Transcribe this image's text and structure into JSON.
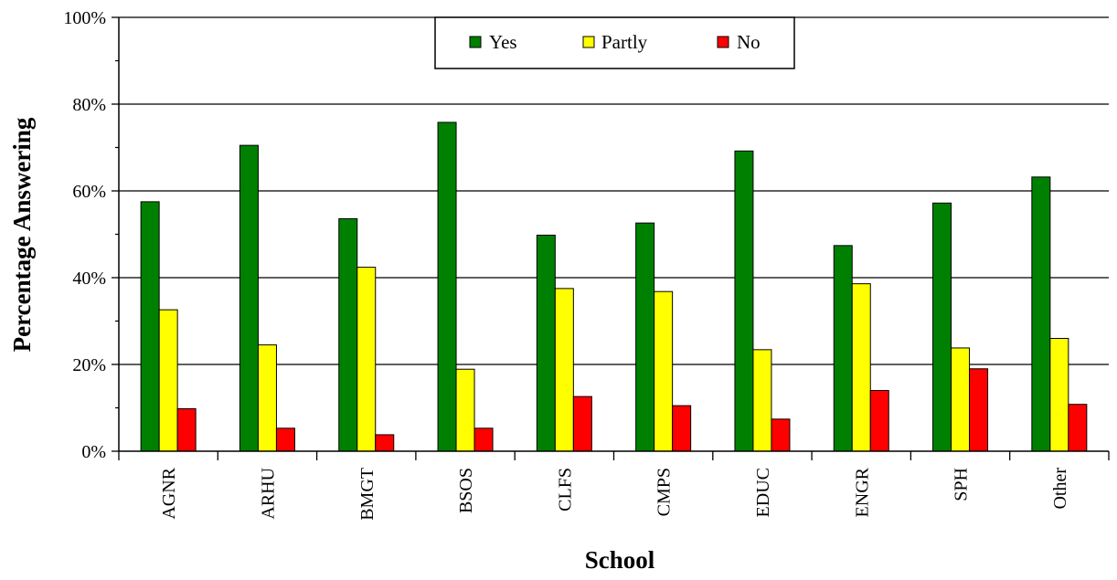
{
  "chart_data": {
    "type": "bar",
    "title": "",
    "xlabel": "School",
    "ylabel": "Percentage Answering",
    "ylim": [
      0,
      100
    ],
    "y_ticks": [
      "0%",
      "20%",
      "40%",
      "60%",
      "80%",
      "100%"
    ],
    "y_tick_values": [
      0,
      20,
      40,
      60,
      80,
      100
    ],
    "grid": true,
    "legend_position": "top-center",
    "categories": [
      "AGNR",
      "ARHU",
      "BMGT",
      "BSOS",
      "CLFS",
      "CMPS",
      "EDUC",
      "ENGR",
      "SPH",
      "Other"
    ],
    "series": [
      {
        "name": "Yes",
        "color": "#008000",
        "values": [
          57.5,
          70.5,
          53.6,
          75.8,
          49.8,
          52.6,
          69.2,
          47.4,
          57.2,
          63.2
        ]
      },
      {
        "name": "Partly",
        "color": "#ffff00",
        "values": [
          32.6,
          24.5,
          42.4,
          18.9,
          37.5,
          36.8,
          23.4,
          38.6,
          23.8,
          26.0
        ]
      },
      {
        "name": "No",
        "color": "#ff0000",
        "values": [
          9.8,
          5.3,
          3.8,
          5.3,
          12.6,
          10.5,
          7.4,
          14.0,
          19.0,
          10.8
        ]
      }
    ]
  }
}
